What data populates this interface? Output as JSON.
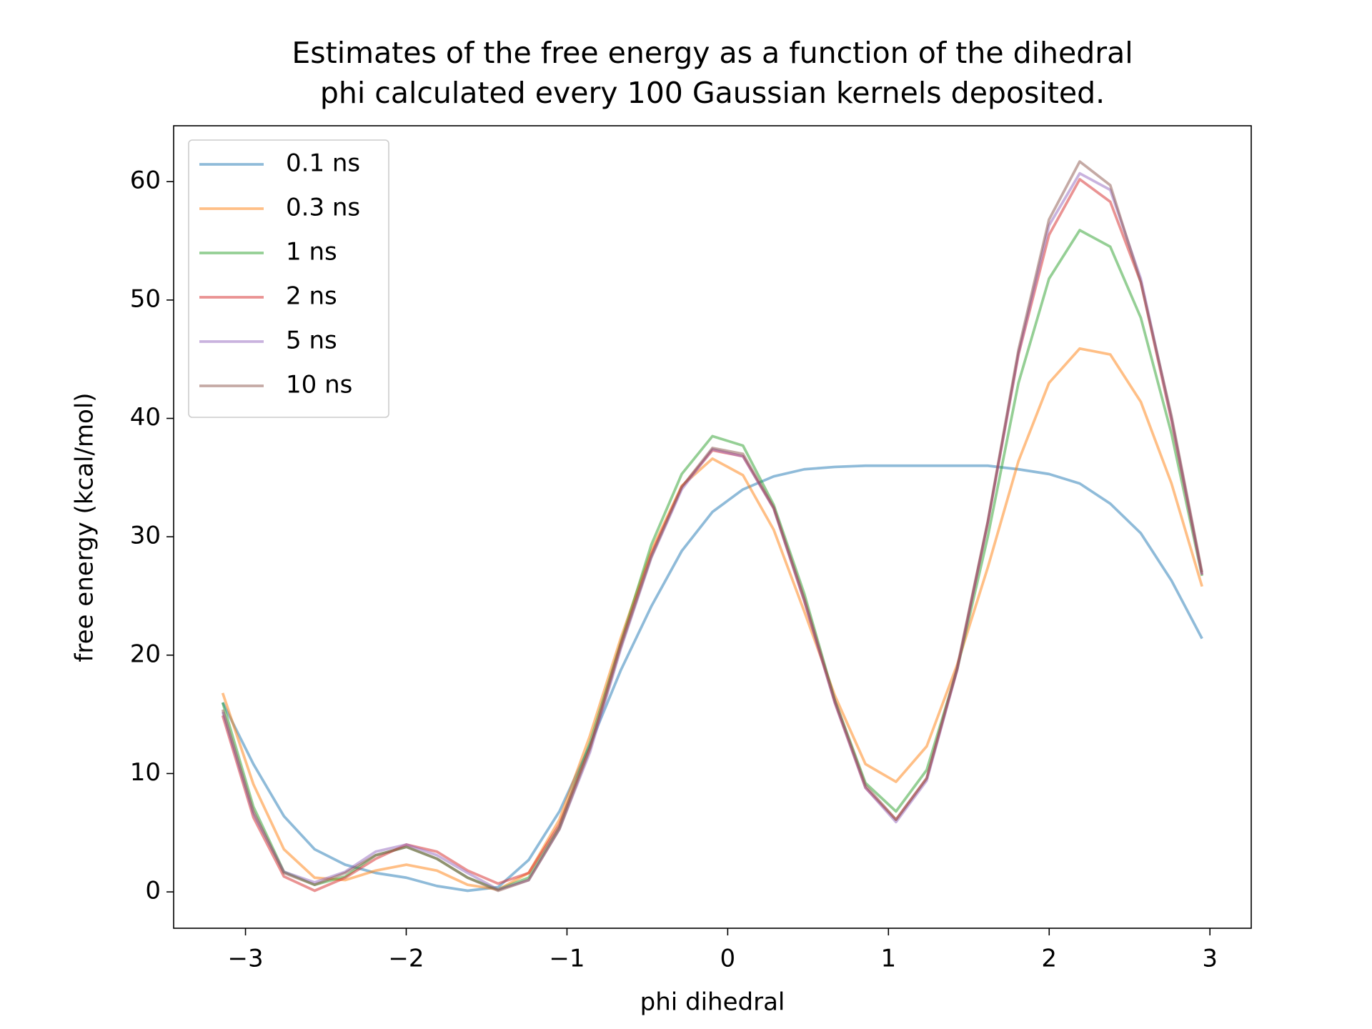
{
  "chart_data": {
    "type": "line",
    "title": [
      "Estimates of the free energy as a function of the dihedral",
      "phi calculated every 100 Gaussian kernels deposited."
    ],
    "xlabel": "phi dihedral",
    "ylabel": "free energy (kcal/mol)",
    "x": [
      -3.142,
      -2.951,
      -2.761,
      -2.57,
      -2.38,
      -2.19,
      -1.999,
      -1.809,
      -1.618,
      -1.428,
      -1.238,
      -1.047,
      -0.857,
      -0.666,
      -0.476,
      -0.286,
      -0.095,
      0.095,
      0.286,
      0.476,
      0.666,
      0.857,
      1.047,
      1.238,
      1.428,
      1.618,
      1.809,
      1.999,
      2.19,
      2.38,
      2.57,
      2.761,
      2.951
    ],
    "series": [
      {
        "name": "0.1 ns",
        "color": "#1f77b4",
        "values": [
          16.0,
          10.8,
          6.4,
          3.6,
          2.3,
          1.6,
          1.2,
          0.5,
          0.1,
          0.4,
          2.7,
          6.8,
          12.4,
          18.7,
          24.1,
          28.8,
          32.1,
          34.0,
          35.1,
          35.7,
          35.9,
          36.0,
          36.0,
          36.0,
          36.0,
          36.0,
          35.7,
          35.3,
          34.5,
          32.8,
          30.3,
          26.3,
          21.4
        ]
      },
      {
        "name": "0.3 ns",
        "color": "#ff7f0e",
        "values": [
          16.8,
          9.1,
          3.6,
          1.2,
          1.0,
          1.8,
          2.3,
          1.8,
          0.6,
          0.2,
          1.6,
          6.1,
          13.2,
          21.4,
          28.8,
          34.3,
          36.6,
          35.2,
          30.6,
          23.7,
          16.6,
          10.8,
          9.3,
          12.3,
          19.2,
          27.4,
          36.4,
          43.0,
          45.9,
          45.4,
          41.4,
          34.5,
          25.8
        ]
      },
      {
        "name": "1 ns",
        "color": "#2ca02c",
        "values": [
          16.0,
          7.2,
          1.7,
          0.6,
          1.3,
          3.1,
          3.8,
          2.8,
          1.2,
          0.2,
          1.2,
          5.5,
          12.6,
          21.0,
          29.3,
          35.3,
          38.5,
          37.7,
          32.7,
          25.2,
          16.2,
          9.2,
          6.8,
          10.3,
          18.8,
          30.0,
          43.0,
          51.8,
          55.9,
          54.5,
          48.5,
          38.7,
          26.7
        ]
      },
      {
        "name": "2 ns",
        "color": "#d62728",
        "values": [
          14.9,
          6.3,
          1.3,
          0.1,
          1.2,
          2.8,
          4.0,
          3.4,
          1.8,
          0.7,
          1.6,
          5.7,
          12.2,
          20.9,
          28.5,
          34.2,
          37.3,
          36.8,
          32.4,
          24.6,
          16.0,
          8.8,
          6.1,
          9.6,
          18.8,
          31.2,
          45.4,
          55.5,
          60.2,
          58.3,
          51.5,
          39.8,
          26.8
        ]
      },
      {
        "name": "5 ns",
        "color": "#9467bd",
        "values": [
          15.2,
          6.6,
          1.7,
          0.8,
          1.7,
          3.4,
          4.0,
          3.1,
          1.6,
          0.2,
          1.0,
          5.3,
          11.8,
          20.5,
          28.2,
          34.0,
          37.4,
          36.8,
          32.4,
          24.6,
          16.0,
          8.8,
          5.9,
          9.4,
          18.8,
          31.2,
          45.5,
          56.3,
          60.7,
          59.3,
          51.8,
          40.0,
          26.8
        ]
      },
      {
        "name": "10 ns",
        "color": "#8c564b",
        "values": [
          15.4,
          6.8,
          1.6,
          0.6,
          1.6,
          3.1,
          3.8,
          2.8,
          1.2,
          0.1,
          1.0,
          5.3,
          12.1,
          20.7,
          28.3,
          34.2,
          37.5,
          37.0,
          32.5,
          24.8,
          16.2,
          9.0,
          6.1,
          9.6,
          19.0,
          31.3,
          45.8,
          56.8,
          61.7,
          59.7,
          51.5,
          40.2,
          27.0
        ]
      }
    ],
    "alpha": 0.5,
    "xlim": [
      -3.447,
      3.257
    ],
    "ylim": [
      -3.07,
      64.72
    ],
    "xticks": [
      {
        "value": -3,
        "label": "−3"
      },
      {
        "value": -2,
        "label": "−2"
      },
      {
        "value": -1,
        "label": "−1"
      },
      0,
      1,
      2,
      3
    ],
    "yticks": [
      0,
      10,
      20,
      30,
      40,
      50,
      60
    ],
    "grid": false,
    "legend": "upper-left"
  }
}
